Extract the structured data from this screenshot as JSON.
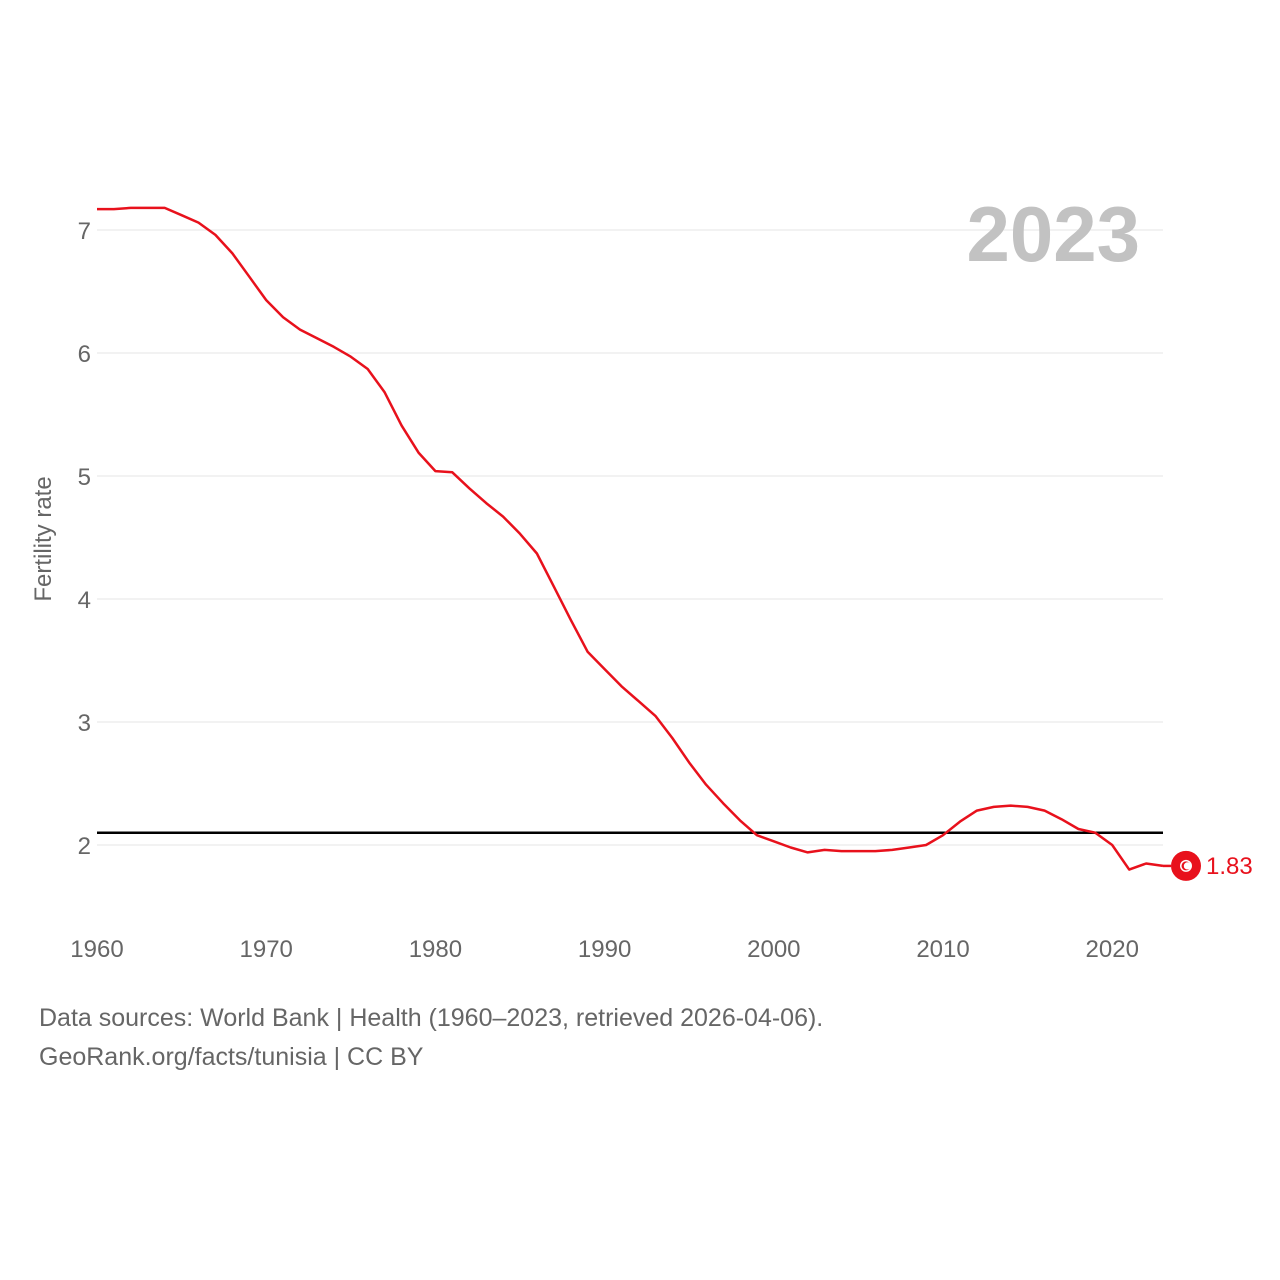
{
  "chart_data": {
    "type": "line",
    "title": "",
    "year_label": "2023",
    "ylabel": "Fertility rate",
    "xlabel": "",
    "xlim": [
      1960,
      2023
    ],
    "ylim": [
      1.35,
      7.4
    ],
    "x_ticks": [
      1960,
      1970,
      1980,
      1990,
      2000,
      2010,
      2020
    ],
    "y_ticks": [
      2,
      3,
      4,
      5,
      6,
      7
    ],
    "grid": true,
    "reference_line": {
      "value": 2.1,
      "color": "#000000"
    },
    "series": [
      {
        "name": "Tunisia",
        "color": "#e8111c",
        "end_label": "1.83",
        "x": [
          1960,
          1961,
          1962,
          1963,
          1964,
          1965,
          1966,
          1967,
          1968,
          1969,
          1970,
          1971,
          1972,
          1973,
          1974,
          1975,
          1976,
          1977,
          1978,
          1979,
          1980,
          1981,
          1982,
          1983,
          1984,
          1985,
          1986,
          1987,
          1988,
          1989,
          1990,
          1991,
          1992,
          1993,
          1994,
          1995,
          1996,
          1997,
          1998,
          1999,
          2000,
          2001,
          2002,
          2003,
          2004,
          2005,
          2006,
          2007,
          2008,
          2009,
          2010,
          2011,
          2012,
          2013,
          2014,
          2015,
          2016,
          2017,
          2018,
          2019,
          2020,
          2021,
          2022,
          2023
        ],
        "values": [
          7.17,
          7.17,
          7.18,
          7.18,
          7.18,
          7.12,
          7.06,
          6.96,
          6.81,
          6.62,
          6.43,
          6.29,
          6.19,
          6.12,
          6.05,
          5.97,
          5.87,
          5.68,
          5.41,
          5.19,
          5.04,
          5.03,
          4.9,
          4.78,
          4.67,
          4.53,
          4.37,
          4.1,
          3.83,
          3.57,
          3.43,
          3.29,
          3.17,
          3.05,
          2.87,
          2.67,
          2.49,
          2.34,
          2.2,
          2.08,
          2.03,
          1.98,
          1.94,
          1.96,
          1.95,
          1.95,
          1.95,
          1.96,
          1.98,
          2.0,
          2.08,
          2.19,
          2.28,
          2.31,
          2.32,
          2.31,
          2.28,
          2.21,
          2.13,
          2.1,
          2.0,
          1.8,
          1.85,
          1.83
        ]
      }
    ]
  },
  "footer": {
    "sources": "Data sources: World Bank | Health (1960–2023, retrieved 2026-04-06).",
    "credit": "GeoRank.org/facts/tunisia | CC BY"
  },
  "marker": {
    "icon": "tunisia-flag-icon"
  }
}
